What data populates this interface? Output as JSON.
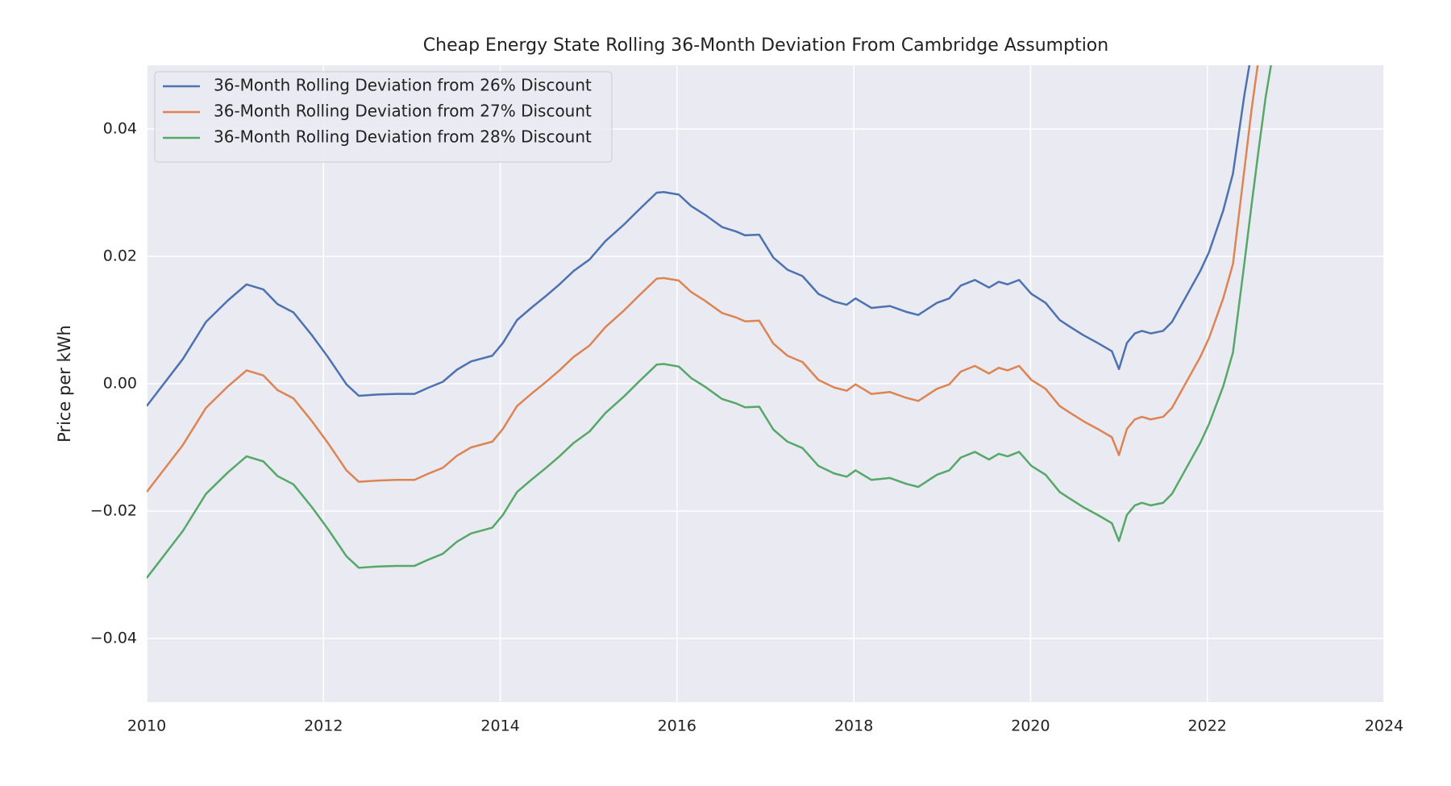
{
  "chart_data": {
    "type": "line",
    "title": "Cheap Energy State Rolling 36-Month Deviation From Cambridge Assumption",
    "y_label": "Price per kWh",
    "x": [
      2010.0,
      2010.41,
      2010.67,
      2010.92,
      2011.13,
      2011.32,
      2011.48,
      2011.66,
      2011.87,
      2012.05,
      2012.26,
      2012.4,
      2012.61,
      2012.82,
      2013.03,
      2013.19,
      2013.35,
      2013.51,
      2013.67,
      2013.91,
      2014.03,
      2014.19,
      2014.35,
      2014.51,
      2014.67,
      2014.83,
      2015.01,
      2015.19,
      2015.4,
      2015.56,
      2015.77,
      2015.85,
      2016.02,
      2016.16,
      2016.32,
      2016.51,
      2016.67,
      2016.77,
      2016.93,
      2017.09,
      2017.25,
      2017.42,
      2017.6,
      2017.78,
      2017.92,
      2018.02,
      2018.2,
      2018.41,
      2018.59,
      2018.73,
      2018.94,
      2019.08,
      2019.21,
      2019.37,
      2019.53,
      2019.64,
      2019.74,
      2019.87,
      2020.01,
      2020.17,
      2020.33,
      2020.44,
      2020.6,
      2020.76,
      2020.92,
      2021.0,
      2021.09,
      2021.18,
      2021.26,
      2021.36,
      2021.5,
      2021.6,
      2021.76,
      2021.92,
      2022.02,
      2022.18,
      2022.29,
      2022.42,
      2022.5,
      2022.58,
      2022.66,
      2022.72
    ],
    "series": [
      {
        "name": "36-Month Rolling Deviation from 26% Discount",
        "color": "#4c72b0",
        "values": [
          -0.0035,
          0.0039,
          0.0097,
          0.0131,
          0.0156,
          0.0148,
          0.0125,
          0.0112,
          0.0076,
          0.0042,
          -0.0001,
          -0.0019,
          -0.0017,
          -0.0016,
          -0.0016,
          -0.0006,
          0.0003,
          0.0022,
          0.0035,
          0.0044,
          0.0064,
          0.01,
          0.0119,
          0.0137,
          0.0156,
          0.0177,
          0.0195,
          0.0224,
          0.025,
          0.0272,
          0.03,
          0.0301,
          0.0297,
          0.0279,
          0.0265,
          0.0246,
          0.0239,
          0.0233,
          0.0234,
          0.0198,
          0.0179,
          0.0169,
          0.0141,
          0.0129,
          0.0124,
          0.0134,
          0.0119,
          0.0122,
          0.0113,
          0.0108,
          0.0127,
          0.0134,
          0.0154,
          0.0163,
          0.0151,
          0.016,
          0.0156,
          0.0163,
          0.0141,
          0.0127,
          0.01,
          0.009,
          0.0076,
          0.0064,
          0.0051,
          0.0023,
          0.0064,
          0.0079,
          0.0083,
          0.0079,
          0.0083,
          0.0097,
          0.0137,
          0.0177,
          0.0207,
          0.0272,
          0.033,
          0.0454,
          0.052,
          null,
          null,
          null
        ]
      },
      {
        "name": "36-Month Rolling Deviation from 27% Discount",
        "color": "#dd8452",
        "values": [
          -0.017,
          -0.0096,
          -0.0038,
          -0.0004,
          0.0021,
          0.0013,
          -0.001,
          -0.0023,
          -0.0059,
          -0.0093,
          -0.0136,
          -0.0154,
          -0.0152,
          -0.0151,
          -0.0151,
          -0.0141,
          -0.0132,
          -0.0113,
          -0.01,
          -0.0091,
          -0.0071,
          -0.0035,
          -0.0016,
          0.0002,
          0.0021,
          0.0042,
          0.006,
          0.0089,
          0.0115,
          0.0137,
          0.0165,
          0.0166,
          0.0162,
          0.0144,
          0.013,
          0.0111,
          0.0104,
          0.0098,
          0.0099,
          0.0063,
          0.0044,
          0.0034,
          0.0006,
          -0.0006,
          -0.0011,
          -0.0001,
          -0.0016,
          -0.0013,
          -0.0022,
          -0.0027,
          -0.0008,
          -0.0001,
          0.0019,
          0.0028,
          0.0016,
          0.0025,
          0.0021,
          0.0028,
          0.0006,
          -0.0008,
          -0.0035,
          -0.0045,
          -0.0059,
          -0.0071,
          -0.0084,
          -0.0112,
          -0.0071,
          -0.0056,
          -0.0052,
          -0.0056,
          -0.0052,
          -0.0038,
          0.0002,
          0.0042,
          0.0072,
          0.0134,
          0.0188,
          0.0337,
          0.043,
          0.051,
          null,
          null
        ]
      },
      {
        "name": "36-Month Rolling Deviation from 28% Discount",
        "color": "#55a868",
        "values": [
          -0.0305,
          -0.0231,
          -0.0173,
          -0.0139,
          -0.0114,
          -0.0122,
          -0.0145,
          -0.0158,
          -0.0194,
          -0.0228,
          -0.0271,
          -0.0289,
          -0.0287,
          -0.0286,
          -0.0286,
          -0.0276,
          -0.0267,
          -0.0248,
          -0.0235,
          -0.0226,
          -0.0206,
          -0.017,
          -0.0151,
          -0.0133,
          -0.0114,
          -0.0093,
          -0.0075,
          -0.0046,
          -0.002,
          0.0002,
          0.003,
          0.0031,
          0.0027,
          0.0009,
          -0.0005,
          -0.0024,
          -0.0031,
          -0.0037,
          -0.0036,
          -0.0072,
          -0.0091,
          -0.0101,
          -0.0129,
          -0.0141,
          -0.0146,
          -0.0136,
          -0.0151,
          -0.0148,
          -0.0157,
          -0.0162,
          -0.0143,
          -0.0136,
          -0.0116,
          -0.0107,
          -0.0119,
          -0.011,
          -0.0114,
          -0.0107,
          -0.0129,
          -0.0143,
          -0.017,
          -0.018,
          -0.0194,
          -0.0206,
          -0.0219,
          -0.0247,
          -0.0206,
          -0.0191,
          -0.0187,
          -0.0191,
          -0.0187,
          -0.0173,
          -0.0133,
          -0.0093,
          -0.0063,
          -0.0004,
          0.0049,
          0.019,
          0.028,
          0.0367,
          0.045,
          0.05
        ]
      }
    ],
    "xlim": [
      2010,
      2024
    ],
    "xticks": [
      2010,
      2012,
      2014,
      2016,
      2018,
      2020,
      2022,
      2024
    ],
    "ylim": [
      -0.05,
      0.05
    ],
    "yticks": [
      {
        "value": -0.04,
        "label": "−0.04"
      },
      {
        "value": -0.02,
        "label": "−0.02"
      },
      {
        "value": 0,
        "label": "0.00"
      },
      {
        "value": 0.02,
        "label": "0.02"
      },
      {
        "value": 0.04,
        "label": "0.04"
      }
    ],
    "grid": true,
    "legend": "upper left"
  }
}
